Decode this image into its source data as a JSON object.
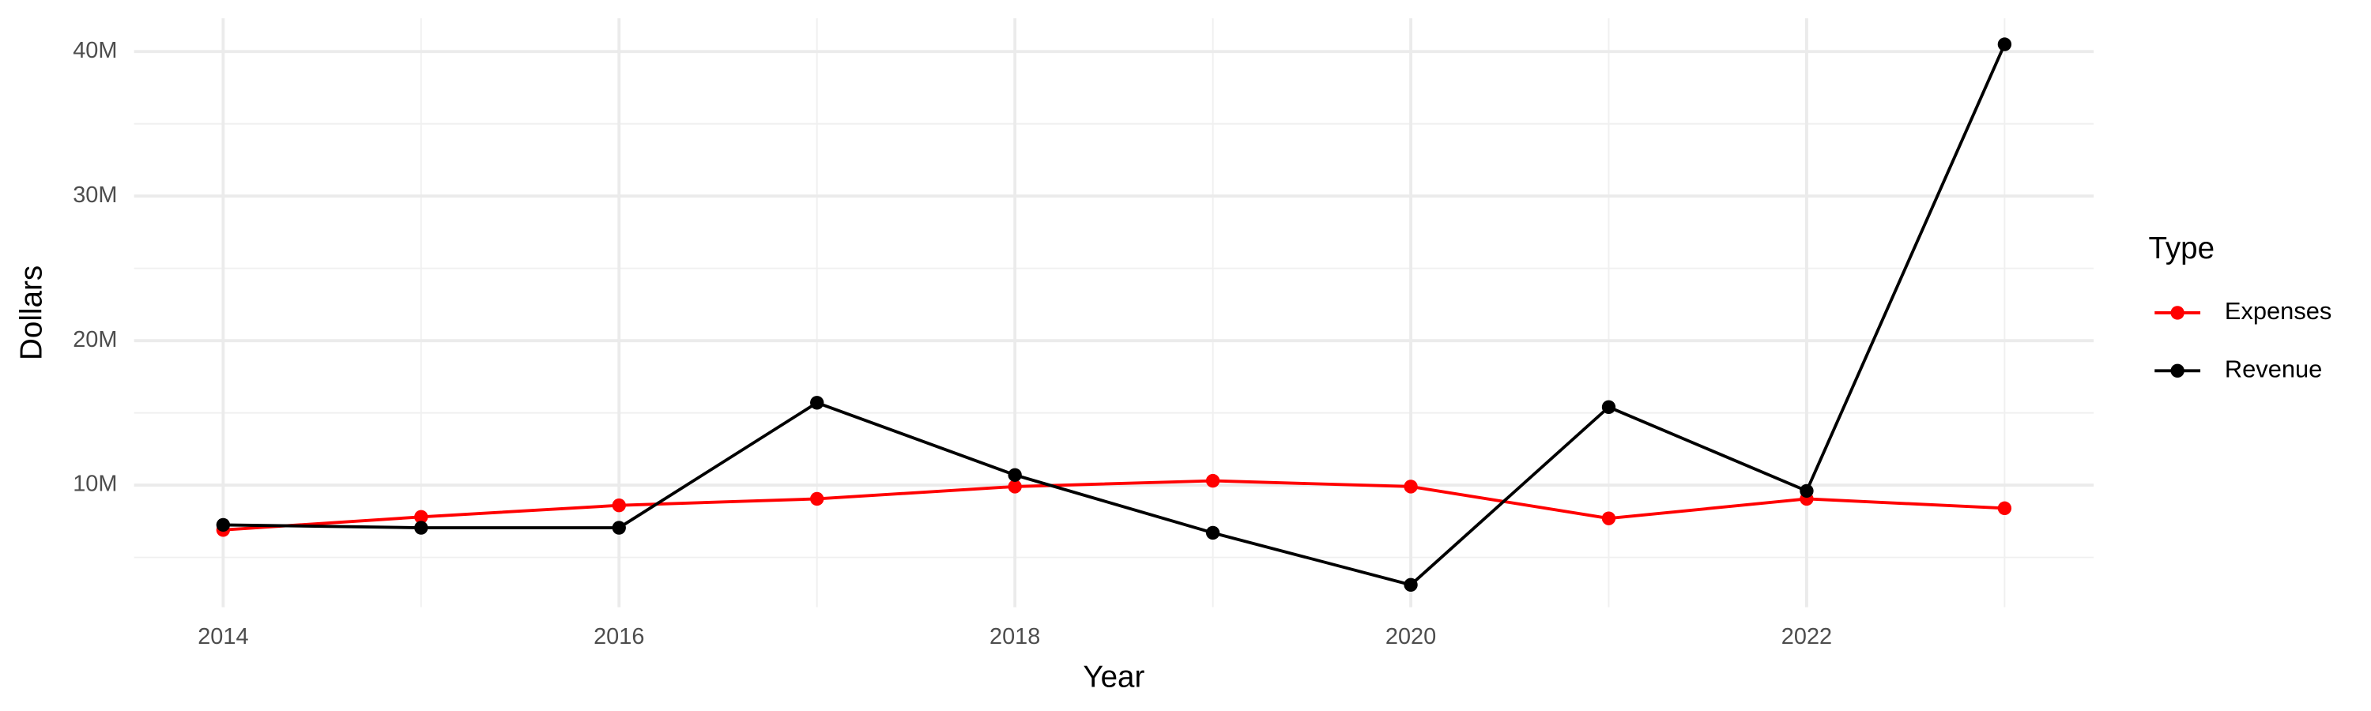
{
  "chart_data": {
    "type": "line",
    "x_label": "Year",
    "y_label": "Dollars",
    "legend_title": "Type",
    "legend_position": "right",
    "x": [
      2014,
      2015,
      2016,
      2017,
      2018,
      2019,
      2020,
      2021,
      2022,
      2023
    ],
    "series": [
      {
        "name": "Expenses",
        "color": "#ff0000",
        "values": [
          6900000,
          7800000,
          8600000,
          9050000,
          9900000,
          10300000,
          9900000,
          7700000,
          9050000,
          8400000
        ]
      },
      {
        "name": "Revenue",
        "color": "#000000",
        "values": [
          7250000,
          7050000,
          7050000,
          15700000,
          10700000,
          6700000,
          3100000,
          15400000,
          9600000,
          40500000
        ]
      }
    ],
    "xlim": [
      2013.55,
      2023.45
    ],
    "xticks": [
      2014,
      2016,
      2018,
      2020,
      2022
    ],
    "ylim": [
      1550000,
      42300000
    ],
    "yticks": [
      {
        "value": 10000000,
        "label": "10M"
      },
      {
        "value": 20000000,
        "label": "20M"
      },
      {
        "value": 30000000,
        "label": "30M"
      },
      {
        "value": 40000000,
        "label": "40M"
      }
    ],
    "grid": true
  }
}
